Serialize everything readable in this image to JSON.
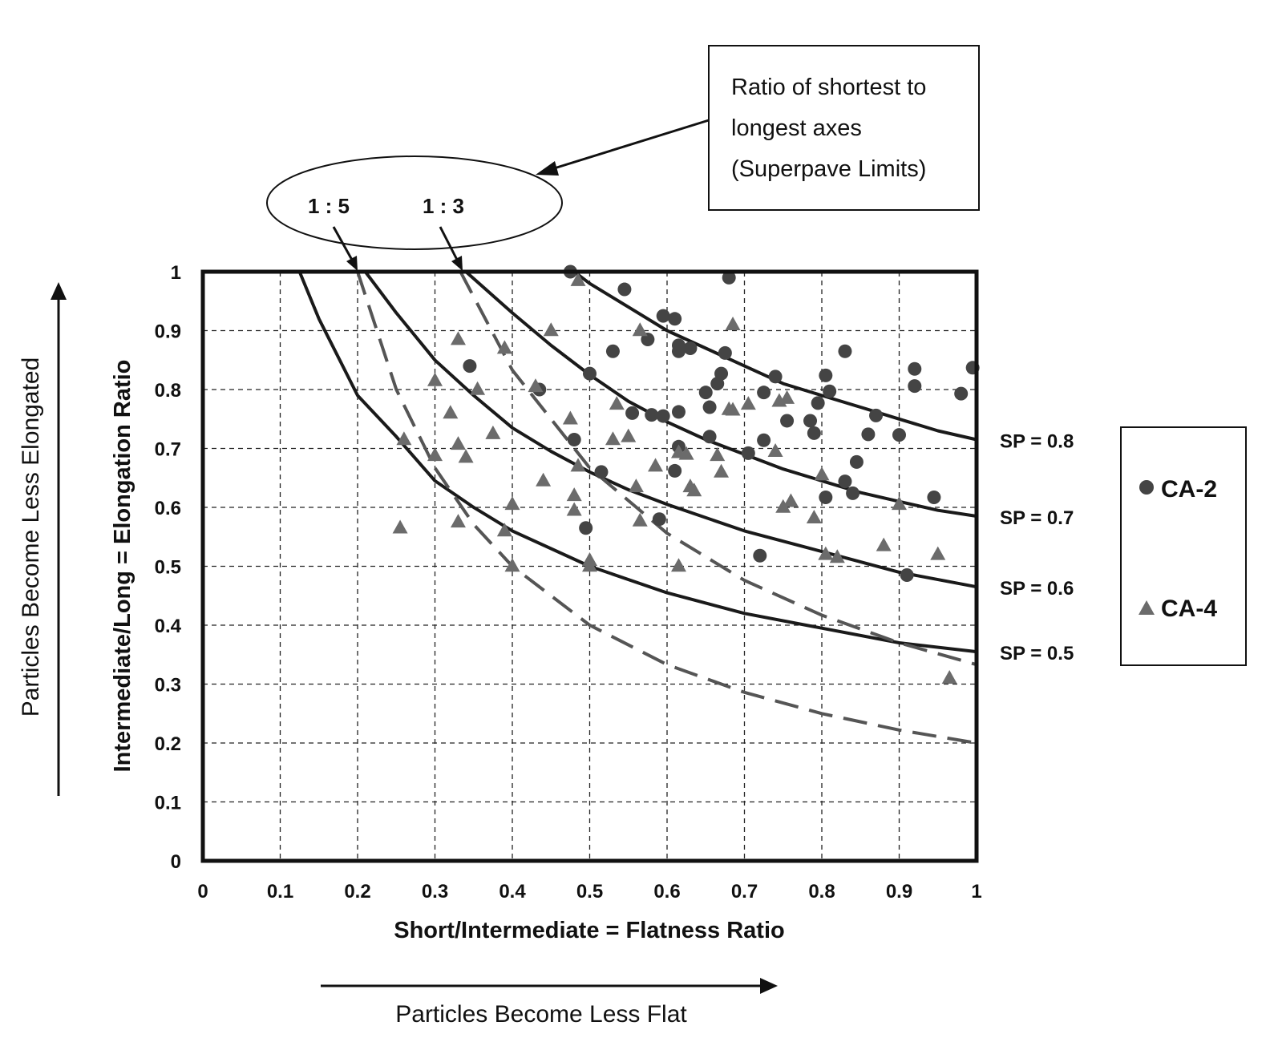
{
  "chart_data": {
    "type": "scatter",
    "title": "",
    "xlabel": "Short/Intermediate = Flatness Ratio",
    "ylabel": "Intermediate/Long = Elongation Ratio",
    "xlim": [
      0,
      1
    ],
    "ylim": [
      0,
      1
    ],
    "x_ticks": [
      "0",
      "0.1",
      "0.2",
      "0.3",
      "0.4",
      "0.5",
      "0.6",
      "0.7",
      "0.8",
      "0.9",
      "1"
    ],
    "y_ticks": [
      "0",
      "0.1",
      "0.2",
      "0.3",
      "0.4",
      "0.5",
      "0.6",
      "0.7",
      "0.8",
      "0.9",
      "1"
    ],
    "grid": true,
    "legend_position": "right",
    "x_direction_note": "Particles Become Less Flat",
    "y_direction_note": "Particles Become Less Elongated",
    "callout": {
      "text_lines": [
        "Ratio of shortest to",
        "longest axes",
        "(Superpave Limits)"
      ],
      "labels": [
        "1 : 5",
        "1 : 3"
      ]
    },
    "curves": [
      {
        "label": "SP = 0.8",
        "style": "solid",
        "x": [
          0.48,
          0.5,
          0.55,
          0.6,
          0.65,
          0.7,
          0.75,
          0.8,
          0.85,
          0.9,
          0.95,
          1.0
        ],
        "y": [
          1.0,
          0.98,
          0.94,
          0.9,
          0.87,
          0.84,
          0.81,
          0.79,
          0.77,
          0.75,
          0.73,
          0.715
        ]
      },
      {
        "label": "SP = 0.7",
        "style": "solid",
        "x": [
          0.34,
          0.4,
          0.45,
          0.5,
          0.55,
          0.6,
          0.65,
          0.7,
          0.75,
          0.8,
          0.85,
          0.9,
          0.95,
          1.0
        ],
        "y": [
          1.0,
          0.93,
          0.875,
          0.825,
          0.78,
          0.745,
          0.715,
          0.69,
          0.665,
          0.645,
          0.625,
          0.61,
          0.595,
          0.585
        ]
      },
      {
        "label": "SP = 0.6",
        "style": "solid",
        "x": [
          0.21,
          0.25,
          0.3,
          0.35,
          0.4,
          0.45,
          0.5,
          0.55,
          0.6,
          0.7,
          0.8,
          0.9,
          1.0
        ],
        "y": [
          1.0,
          0.93,
          0.85,
          0.79,
          0.735,
          0.695,
          0.66,
          0.63,
          0.605,
          0.56,
          0.525,
          0.49,
          0.465
        ]
      },
      {
        "label": "SP = 0.5",
        "style": "solid",
        "x": [
          0.125,
          0.15,
          0.2,
          0.25,
          0.3,
          0.35,
          0.4,
          0.5,
          0.6,
          0.7,
          0.8,
          0.9,
          1.0
        ],
        "y": [
          1.0,
          0.92,
          0.79,
          0.72,
          0.645,
          0.6,
          0.56,
          0.5,
          0.455,
          0.42,
          0.395,
          0.37,
          0.355
        ]
      },
      {
        "label": "1 : 5",
        "style": "dashed",
        "x": [
          0.2,
          0.25,
          0.3,
          0.35,
          0.4,
          0.5,
          0.6,
          0.7,
          0.8,
          0.9,
          1.0
        ],
        "y": [
          1.0,
          0.8,
          0.667,
          0.571,
          0.5,
          0.4,
          0.333,
          0.286,
          0.25,
          0.222,
          0.2
        ]
      },
      {
        "label": "1 : 3",
        "style": "dashed",
        "x": [
          0.333,
          0.4,
          0.5,
          0.6,
          0.7,
          0.8,
          0.9,
          1.0
        ],
        "y": [
          1.0,
          0.833,
          0.667,
          0.556,
          0.476,
          0.417,
          0.37,
          0.333
        ]
      }
    ],
    "series": [
      {
        "name": "CA-2",
        "marker": "circle",
        "color": "#444444",
        "points": [
          [
            0.475,
            1.0
          ],
          [
            0.545,
            0.97
          ],
          [
            0.68,
            0.99
          ],
          [
            0.595,
            0.925
          ],
          [
            0.61,
            0.92
          ],
          [
            0.345,
            0.84
          ],
          [
            0.435,
            0.8
          ],
          [
            0.53,
            0.865
          ],
          [
            0.575,
            0.885
          ],
          [
            0.615,
            0.875
          ],
          [
            0.615,
            0.865
          ],
          [
            0.63,
            0.87
          ],
          [
            0.675,
            0.862
          ],
          [
            0.83,
            0.865
          ],
          [
            0.5,
            0.827
          ],
          [
            0.67,
            0.827
          ],
          [
            0.665,
            0.81
          ],
          [
            0.65,
            0.795
          ],
          [
            0.725,
            0.795
          ],
          [
            0.74,
            0.822
          ],
          [
            0.805,
            0.824
          ],
          [
            0.81,
            0.797
          ],
          [
            0.92,
            0.835
          ],
          [
            0.92,
            0.806
          ],
          [
            0.995,
            0.837
          ],
          [
            0.98,
            0.793
          ],
          [
            0.655,
            0.77
          ],
          [
            0.555,
            0.76
          ],
          [
            0.58,
            0.757
          ],
          [
            0.595,
            0.755
          ],
          [
            0.615,
            0.762
          ],
          [
            0.795,
            0.777
          ],
          [
            0.87,
            0.756
          ],
          [
            0.755,
            0.747
          ],
          [
            0.785,
            0.747
          ],
          [
            0.48,
            0.715
          ],
          [
            0.655,
            0.72
          ],
          [
            0.725,
            0.714
          ],
          [
            0.79,
            0.726
          ],
          [
            0.86,
            0.724
          ],
          [
            0.9,
            0.723
          ],
          [
            0.615,
            0.703
          ],
          [
            0.705,
            0.692
          ],
          [
            0.845,
            0.677
          ],
          [
            0.515,
            0.66
          ],
          [
            0.61,
            0.662
          ],
          [
            0.83,
            0.644
          ],
          [
            0.84,
            0.624
          ],
          [
            0.805,
            0.617
          ],
          [
            0.945,
            0.617
          ],
          [
            0.59,
            0.58
          ],
          [
            0.495,
            0.565
          ],
          [
            0.72,
            0.518
          ],
          [
            0.91,
            0.485
          ]
        ]
      },
      {
        "name": "CA-4",
        "marker": "triangle",
        "color": "#6b6b6b",
        "points": [
          [
            0.485,
            0.985
          ],
          [
            0.565,
            0.9
          ],
          [
            0.45,
            0.9
          ],
          [
            0.685,
            0.91
          ],
          [
            0.33,
            0.885
          ],
          [
            0.39,
            0.87
          ],
          [
            0.3,
            0.815
          ],
          [
            0.355,
            0.8
          ],
          [
            0.43,
            0.805
          ],
          [
            0.32,
            0.76
          ],
          [
            0.535,
            0.775
          ],
          [
            0.705,
            0.775
          ],
          [
            0.745,
            0.78
          ],
          [
            0.755,
            0.785
          ],
          [
            0.68,
            0.766
          ],
          [
            0.685,
            0.765
          ],
          [
            0.475,
            0.75
          ],
          [
            0.26,
            0.715
          ],
          [
            0.375,
            0.725
          ],
          [
            0.53,
            0.715
          ],
          [
            0.55,
            0.72
          ],
          [
            0.33,
            0.707
          ],
          [
            0.34,
            0.685
          ],
          [
            0.3,
            0.688
          ],
          [
            0.615,
            0.693
          ],
          [
            0.625,
            0.69
          ],
          [
            0.74,
            0.695
          ],
          [
            0.665,
            0.688
          ],
          [
            0.485,
            0.67
          ],
          [
            0.585,
            0.67
          ],
          [
            0.67,
            0.66
          ],
          [
            0.8,
            0.655
          ],
          [
            0.44,
            0.645
          ],
          [
            0.56,
            0.635
          ],
          [
            0.63,
            0.635
          ],
          [
            0.635,
            0.628
          ],
          [
            0.48,
            0.62
          ],
          [
            0.4,
            0.605
          ],
          [
            0.76,
            0.61
          ],
          [
            0.75,
            0.6
          ],
          [
            0.9,
            0.605
          ],
          [
            0.48,
            0.595
          ],
          [
            0.79,
            0.582
          ],
          [
            0.565,
            0.577
          ],
          [
            0.33,
            0.575
          ],
          [
            0.255,
            0.565
          ],
          [
            0.39,
            0.56
          ],
          [
            0.88,
            0.535
          ],
          [
            0.805,
            0.52
          ],
          [
            0.82,
            0.515
          ],
          [
            0.95,
            0.52
          ],
          [
            0.5,
            0.51
          ],
          [
            0.5,
            0.5
          ],
          [
            0.4,
            0.5
          ],
          [
            0.615,
            0.5
          ],
          [
            0.965,
            0.31
          ]
        ]
      }
    ]
  }
}
